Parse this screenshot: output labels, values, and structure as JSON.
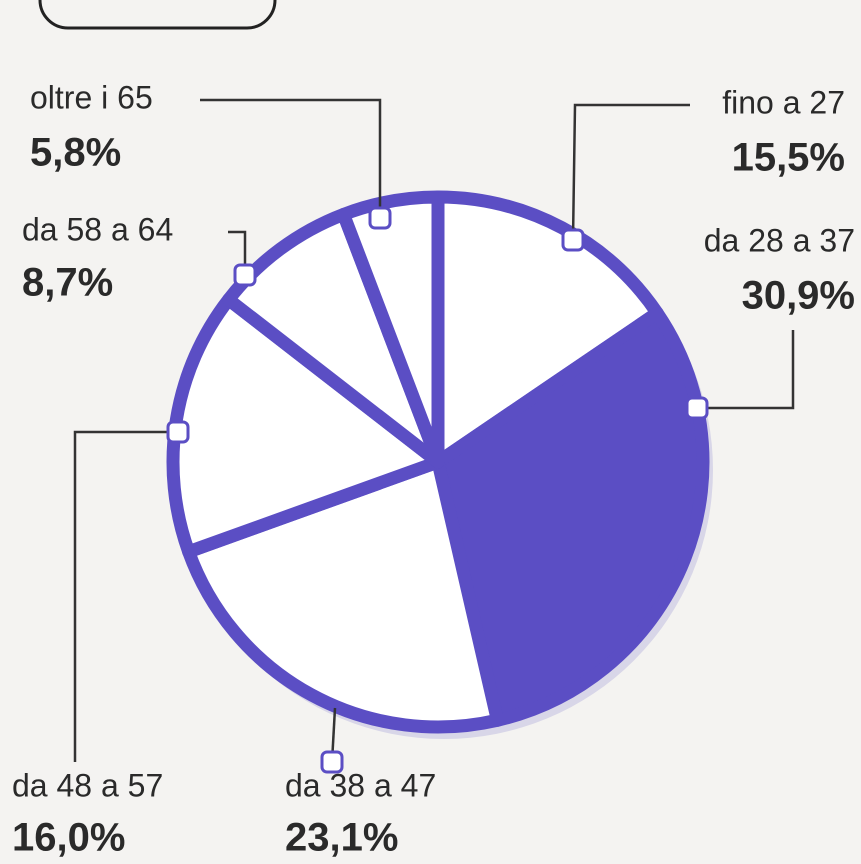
{
  "chart_data": {
    "type": "pie",
    "categories": [
      "fino a 27",
      "da 28 a 37",
      "da 38 a 47",
      "da 48 a 57",
      "da 58 a 64",
      "oltre i 65"
    ],
    "values": [
      15.5,
      30.9,
      23.1,
      16.0,
      8.7,
      5.8
    ],
    "value_labels": [
      "15,5%",
      "30,9%",
      "23,1%",
      "16,0%",
      "8,7%",
      "5,8%"
    ],
    "colors": [
      "#ffffff",
      "#5b4ec4",
      "#ffffff",
      "#ffffff",
      "#ffffff",
      "#ffffff"
    ],
    "edge_color": "#5b4ec4"
  }
}
